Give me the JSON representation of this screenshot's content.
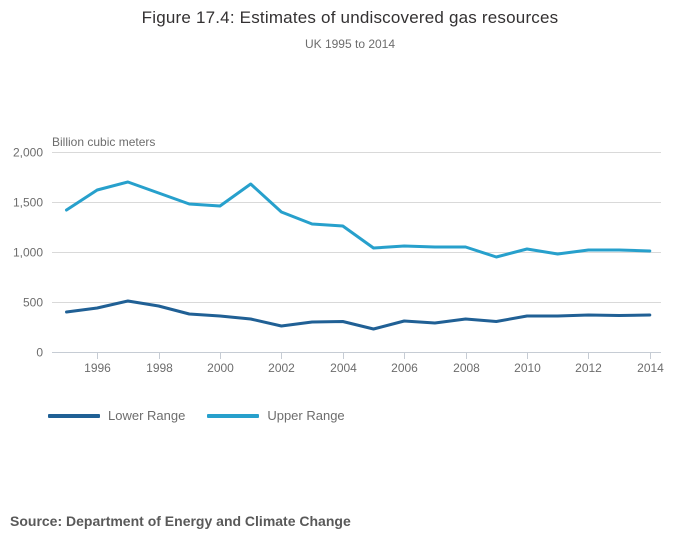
{
  "header": {
    "title": "Figure 17.4: Estimates of undiscovered gas resources",
    "subtitle": "UK 1995 to 2014"
  },
  "chart_data": {
    "type": "line",
    "title": "Figure 17.4: Estimates of undiscovered gas resources",
    "subtitle": "UK 1995 to 2014",
    "unit_label": "Billion cubic meters",
    "x": [
      1995,
      1996,
      1997,
      1998,
      1999,
      2000,
      2001,
      2002,
      2003,
      2004,
      2005,
      2006,
      2007,
      2008,
      2009,
      2010,
      2011,
      2012,
      2013,
      2014
    ],
    "series": [
      {
        "name": "Lower Range",
        "color": "#206095",
        "values": [
          400,
          440,
          510,
          460,
          380,
          360,
          330,
          260,
          300,
          305,
          230,
          310,
          290,
          330,
          305,
          360,
          360,
          370,
          365,
          370
        ]
      },
      {
        "name": "Upper Range",
        "color": "#27A0CC",
        "values": [
          1420,
          1620,
          1700,
          1590,
          1480,
          1460,
          1680,
          1400,
          1280,
          1260,
          1040,
          1060,
          1050,
          1050,
          950,
          1030,
          980,
          1020,
          1020,
          1010
        ]
      }
    ],
    "ylim": [
      0,
      2000
    ],
    "y_ticks": [
      0,
      500,
      1000,
      1500,
      2000
    ],
    "y_tick_labels": [
      "0",
      "500",
      "1,000",
      "1,500",
      "2,000"
    ],
    "x_tick_years": [
      1996,
      1998,
      2000,
      2002,
      2004,
      2006,
      2008,
      2010,
      2012,
      2014
    ],
    "x_tick_labels": [
      "1996",
      "1998",
      "2000",
      "2002",
      "2004",
      "2006",
      "2008",
      "2010",
      "2012",
      "2014"
    ],
    "grid": true,
    "legend_position": "bottom-left",
    "colors": {
      "gridline": "#d9d9d9",
      "axis_line": "#c6ccd4",
      "tick_label": "#6d6d6d",
      "unit_label": "#6d6d6d"
    }
  },
  "legend": {
    "items": [
      {
        "label": "Lower Range",
        "color": "#206095"
      },
      {
        "label": "Upper Range",
        "color": "#27A0CC"
      }
    ]
  },
  "source": {
    "text": "Source: Department of Energy and Climate Change"
  }
}
